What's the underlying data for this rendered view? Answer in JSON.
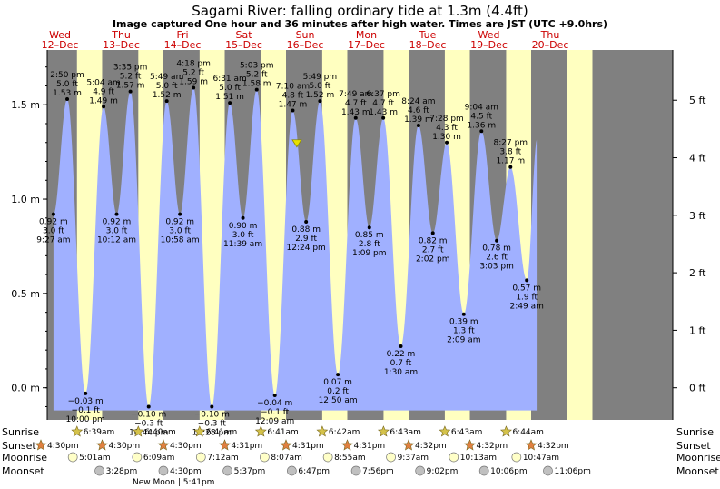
{
  "title": "Sagami River: falling  ordinary tide at 1.3m (4.4ft)",
  "subtitle": "Image captured One hour and 36 minutes after high water. Times are JST (UTC +9.0hrs)",
  "colors": {
    "night": "#808080",
    "day": "#ffffc0",
    "water": "#a0b0ff",
    "day_label": "#cc0000",
    "sun_marker": "#d4c24a",
    "sunset_marker": "#e08040",
    "moonrise_marker": "#ffffc8",
    "moonset_marker": "#c0c0c0",
    "now_marker": "#e8e000"
  },
  "chart_data": {
    "type": "area",
    "ylim_m": [
      -0.17,
      1.79
    ],
    "xlim_hours": [
      -5,
      240
    ],
    "y_ticks_m": [
      {
        "value": 1.5,
        "label": "1.5 m"
      },
      {
        "value": 1.0,
        "label": "1.0 m"
      },
      {
        "value": 0.5,
        "label": "0.5 m"
      },
      {
        "value": 0.0,
        "label": "0.0 m"
      }
    ],
    "y_ticks_ft": [
      {
        "value": 5,
        "label": "5 ft"
      },
      {
        "value": 4,
        "label": "4 ft"
      },
      {
        "value": 3,
        "label": "3 ft"
      },
      {
        "value": 2,
        "label": "2 ft"
      },
      {
        "value": 1,
        "label": "1 ft"
      },
      {
        "value": 0,
        "label": "0 ft"
      }
    ],
    "days": [
      {
        "dow": "Wed",
        "date": "12–Dec",
        "hour": 0
      },
      {
        "dow": "Thu",
        "date": "13–Dec",
        "hour": 24
      },
      {
        "dow": "Fri",
        "date": "14–Dec",
        "hour": 48
      },
      {
        "dow": "Sat",
        "date": "15–Dec",
        "hour": 72
      },
      {
        "dow": "Sun",
        "date": "16–Dec",
        "hour": 96
      },
      {
        "dow": "Mon",
        "date": "17–Dec",
        "hour": 120
      },
      {
        "dow": "Tue",
        "date": "18–Dec",
        "hour": 144
      },
      {
        "dow": "Wed",
        "date": "19–Dec",
        "hour": 168
      },
      {
        "dow": "Thu",
        "date": "20–Dec",
        "hour": 192
      }
    ],
    "daylight": [
      {
        "rise": 6.65,
        "set": 16.5
      },
      {
        "rise": 30.67,
        "set": 40.5
      },
      {
        "rise": 54.68,
        "set": 64.52
      },
      {
        "rise": 78.68,
        "set": 88.52
      },
      {
        "rise": 102.7,
        "set": 112.52
      },
      {
        "rise": 126.72,
        "set": 136.53
      },
      {
        "rise": 150.72,
        "set": 160.53
      },
      {
        "rise": 174.73,
        "set": 184.53
      },
      {
        "rise": 198.73,
        "set": 208.53
      }
    ],
    "tides": [
      {
        "hour": -2.55,
        "m": 0.92,
        "label": [
          "0.92 m",
          "3.0 ft",
          "9:27 am"
        ],
        "type": "low"
      },
      {
        "hour": 2.83,
        "m": 1.53,
        "label": [
          "2:50 pm",
          "5.0 ft",
          "1.53 m"
        ],
        "type": "high"
      },
      {
        "hour": 10.0,
        "m": -0.03,
        "label": [
          "−0.03 m",
          "−0.1 ft",
          "10:00 pm"
        ],
        "type": "low"
      },
      {
        "hour": 17.07,
        "m": 1.49,
        "label": [
          "5:04 am",
          "4.9 ft",
          "1.49 m"
        ],
        "type": "high"
      },
      {
        "hour": 22.2,
        "m": 0.92,
        "label": [
          "0.92 m",
          "3.0 ft",
          "10:12 am"
        ],
        "type": "low"
      },
      {
        "hour": 27.58,
        "m": 1.57,
        "label": [
          "3:35 pm",
          "5.2 ft",
          "1.57 m"
        ],
        "type": "high"
      },
      {
        "hour": 34.73,
        "m": -0.1,
        "label": [
          "−0.10 m",
          "−0.3 ft",
          "10:44 pm"
        ],
        "type": "low"
      },
      {
        "hour": 41.82,
        "m": 1.52,
        "label": [
          "5:49 am",
          "5.0 ft",
          "1.52 m"
        ],
        "type": "high"
      },
      {
        "hour": 46.97,
        "m": 0.92,
        "label": [
          "0.92 m",
          "3.0 ft",
          "10:58 am"
        ],
        "type": "low"
      },
      {
        "hour": 52.3,
        "m": 1.59,
        "label": [
          "4:18 pm",
          "5.2 ft",
          "1.59 m"
        ],
        "type": "high"
      },
      {
        "hour": 59.47,
        "m": -0.1,
        "label": [
          "−0.10 m",
          "−0.3 ft",
          "11:28 pm"
        ],
        "type": "low"
      },
      {
        "hour": 66.52,
        "m": 1.51,
        "label": [
          "6:31 am",
          "5.0 ft",
          "1.51 m"
        ],
        "type": "high"
      },
      {
        "hour": 71.65,
        "m": 0.9,
        "label": [
          "0.90 m",
          "3.0 ft",
          "11:39 am"
        ],
        "type": "low"
      },
      {
        "hour": 77.05,
        "m": 1.58,
        "label": [
          "5:03 pm",
          "5.2 ft",
          "1.58 m"
        ],
        "type": "high"
      },
      {
        "hour": 84.15,
        "m": -0.04,
        "label": [
          "−0.04 m",
          "−0.1 ft",
          "12:09 am"
        ],
        "type": "low"
      },
      {
        "hour": 91.17,
        "m": 1.47,
        "label": [
          "7:10 am",
          "4.8 ft",
          "1.47 m"
        ],
        "type": "high"
      },
      {
        "hour": 96.4,
        "m": 0.88,
        "label": [
          "0.88 m",
          "2.9 ft",
          "12:24 pm"
        ],
        "type": "low"
      },
      {
        "hour": 101.82,
        "m": 1.52,
        "label": [
          "5:49 pm",
          "5.0 ft",
          "1.52 m"
        ],
        "type": "high"
      },
      {
        "hour": 108.83,
        "m": 0.07,
        "label": [
          "0.07 m",
          "0.2 ft",
          "12:50 am"
        ],
        "type": "low"
      },
      {
        "hour": 115.82,
        "m": 1.43,
        "label": [
          "7:49 am",
          "4.7 ft",
          "1.43 m"
        ],
        "type": "high"
      },
      {
        "hour": 121.15,
        "m": 0.85,
        "label": [
          "0.85 m",
          "2.8 ft",
          "1:09 pm"
        ],
        "type": "low"
      },
      {
        "hour": 126.62,
        "m": 1.43,
        "label": [
          "6:37 pm",
          "4.7 ft",
          "1.43 m"
        ],
        "type": "high"
      },
      {
        "hour": 133.5,
        "m": 0.22,
        "label": [
          "0.22 m",
          "0.7 ft",
          "1:30 am"
        ],
        "type": "low"
      },
      {
        "hour": 140.4,
        "m": 1.39,
        "label": [
          "8:24 am",
          "4.6 ft",
          "1.39 m"
        ],
        "type": "high"
      },
      {
        "hour": 146.03,
        "m": 0.82,
        "label": [
          "0.82 m",
          "2.7 ft",
          "2:02 pm"
        ],
        "type": "low"
      },
      {
        "hour": 151.47,
        "m": 1.3,
        "label": [
          "7:28 pm",
          "4.3 ft",
          "1.30 m"
        ],
        "type": "high"
      },
      {
        "hour": 158.15,
        "m": 0.39,
        "label": [
          "0.39 m",
          "1.3 ft",
          "2:09 am"
        ],
        "type": "low"
      },
      {
        "hour": 165.07,
        "m": 1.36,
        "label": [
          "9:04 am",
          "4.5 ft",
          "1.36 m"
        ],
        "type": "high"
      },
      {
        "hour": 171.05,
        "m": 0.78,
        "label": [
          "0.78 m",
          "2.6 ft",
          "3:03 pm"
        ],
        "type": "low"
      },
      {
        "hour": 176.45,
        "m": 1.17,
        "label": [
          "8:27 pm",
          "3.8 ft",
          "1.17 m"
        ],
        "type": "high"
      },
      {
        "hour": 182.82,
        "m": 0.57,
        "label": [
          "0.57 m",
          "1.9 ft",
          "2:49 am"
        ],
        "type": "low"
      }
    ],
    "curve_end_hour": 186.7,
    "curve_end_m": 1.3,
    "now_marker": {
      "hour": 92.76,
      "m": 1.3
    }
  },
  "almanac": {
    "row_labels": {
      "sunrise": "Sunrise",
      "sunset": "Sunset",
      "moonrise": "Moonrise",
      "moonset": "Moonset"
    },
    "sunrise": [
      {
        "hour": 6.65,
        "label": "6:39am"
      },
      {
        "hour": 30.67,
        "label": "6:40am"
      },
      {
        "hour": 54.68,
        "label": "6:41am"
      },
      {
        "hour": 78.68,
        "label": "6:41am"
      },
      {
        "hour": 102.7,
        "label": "6:42am"
      },
      {
        "hour": 126.72,
        "label": "6:43am"
      },
      {
        "hour": 150.72,
        "label": "6:43am"
      },
      {
        "hour": 174.73,
        "label": "6:44am"
      }
    ],
    "sunset": [
      {
        "hour": -7.5,
        "label": "4:30pm"
      },
      {
        "hour": 16.5,
        "label": "4:30pm"
      },
      {
        "hour": 40.5,
        "label": "4:30pm"
      },
      {
        "hour": 64.52,
        "label": "4:31pm"
      },
      {
        "hour": 88.52,
        "label": "4:31pm"
      },
      {
        "hour": 112.52,
        "label": "4:31pm"
      },
      {
        "hour": 136.53,
        "label": "4:32pm"
      },
      {
        "hour": 160.53,
        "label": "4:32pm"
      },
      {
        "hour": 184.53,
        "label": "4:32pm"
      }
    ],
    "moonrise": [
      {
        "hour": 5.02,
        "label": "5:01am"
      },
      {
        "hour": 30.15,
        "label": "6:09am"
      },
      {
        "hour": 55.2,
        "label": "7:12am"
      },
      {
        "hour": 80.12,
        "label": "8:07am"
      },
      {
        "hour": 104.92,
        "label": "8:55am"
      },
      {
        "hour": 129.62,
        "label": "9:37am"
      },
      {
        "hour": 154.22,
        "label": "10:13am"
      },
      {
        "hour": 178.78,
        "label": "10:47am"
      }
    ],
    "moonset": [
      {
        "hour": 15.47,
        "label": "3:28pm"
      },
      {
        "hour": 40.5,
        "label": "4:30pm"
      },
      {
        "hour": 65.62,
        "label": "5:37pm"
      },
      {
        "hour": 90.78,
        "label": "6:47pm"
      },
      {
        "hour": 115.93,
        "label": "7:56pm"
      },
      {
        "hour": 141.03,
        "label": "9:02pm"
      },
      {
        "hour": 166.1,
        "label": "10:06pm"
      },
      {
        "hour": 191.1,
        "label": "11:06pm"
      }
    ],
    "new_moon": "New Moon | 5:41pm"
  }
}
